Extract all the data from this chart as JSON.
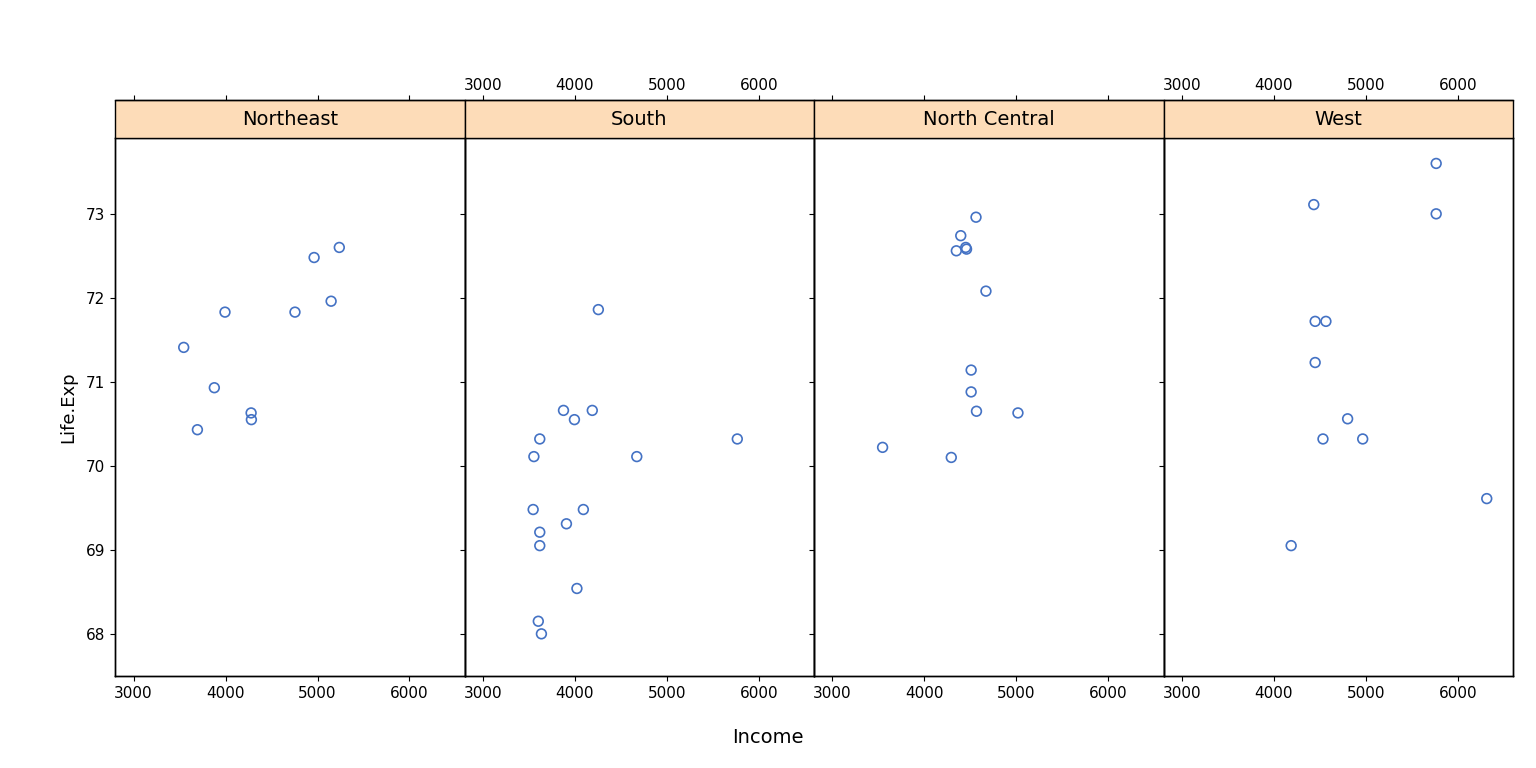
{
  "panels": [
    {
      "label": "Northeast",
      "income": [
        3994,
        4755,
        4281,
        5148,
        3694,
        3545,
        4963,
        4278,
        5237,
        3878
      ],
      "life_exp": [
        71.83,
        71.83,
        70.55,
        71.96,
        70.43,
        71.41,
        72.48,
        70.63,
        72.6,
        70.93
      ],
      "show_top_labels": false
    },
    {
      "label": "South",
      "income": [
        3601,
        3635,
        4091,
        3617,
        3617,
        3875,
        4254,
        3553,
        4672,
        3907,
        3617,
        5765,
        4188,
        3994,
        4021,
        3545
      ],
      "life_exp": [
        68.15,
        68.0,
        69.48,
        69.05,
        69.21,
        70.66,
        71.86,
        70.11,
        70.11,
        69.31,
        70.32,
        70.32,
        70.66,
        70.55,
        68.54,
        69.48
      ],
      "show_top_labels": true
    },
    {
      "label": "North Central",
      "income": [
        4347,
        4458,
        4561,
        4449,
        4566,
        4669,
        4508,
        5017,
        4508,
        4292,
        4395,
        3545
      ],
      "life_exp": [
        72.56,
        72.58,
        72.96,
        72.6,
        70.65,
        72.08,
        70.88,
        70.63,
        71.14,
        70.1,
        72.74,
        70.22
      ],
      "show_top_labels": false
    },
    {
      "label": "West",
      "income": [
        4434,
        4449,
        5765,
        4566,
        4449,
        4966,
        4802,
        5765,
        4188,
        4534,
        6315
      ],
      "life_exp": [
        73.11,
        71.23,
        73.6,
        71.72,
        71.72,
        70.32,
        70.56,
        73.0,
        69.05,
        70.32,
        69.61
      ],
      "show_top_labels": true
    }
  ],
  "xlim": [
    2800,
    6600
  ],
  "ylim": [
    67.5,
    73.9
  ],
  "xticks": [
    3000,
    4000,
    5000,
    6000
  ],
  "yticks": [
    68,
    69,
    70,
    71,
    72,
    73
  ],
  "xlabel": "Income",
  "ylabel": "Life.Exp",
  "marker_color": "#4472C4",
  "marker_facecolor": "none",
  "marker_size": 7,
  "header_color": "#FDDCB8",
  "header_edge_color": "#000000",
  "bg_color": "white",
  "outer_bg": "white",
  "tick_fontsize": 11,
  "label_fontsize": 13,
  "header_fontsize": 14
}
